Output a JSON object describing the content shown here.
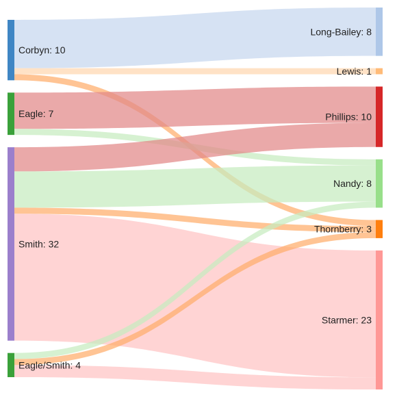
{
  "chart_data": {
    "type": "sankey",
    "sources": [
      {
        "id": "corbyn",
        "label": "Corbyn: 10",
        "value": 10,
        "color": "#3f86c4"
      },
      {
        "id": "eagle",
        "label": "Eagle: 7",
        "value": 7,
        "color": "#3aa13a"
      },
      {
        "id": "smith",
        "label": "Smith: 32",
        "value": 32,
        "color": "#9b7fcc"
      },
      {
        "id": "eaglesmith",
        "label": "Eagle/Smith: 4",
        "value": 4,
        "color": "#3aa13a"
      }
    ],
    "targets": [
      {
        "id": "longbailey",
        "label": "Long-Bailey: 8",
        "value": 8,
        "color": "#aec7e8"
      },
      {
        "id": "lewis",
        "label": "Lewis: 1",
        "value": 1,
        "color": "#ffbb78"
      },
      {
        "id": "phillips",
        "label": "Phillips: 10",
        "value": 10,
        "color": "#d62728"
      },
      {
        "id": "nandy",
        "label": "Nandy: 8",
        "value": 8,
        "color": "#98df8a"
      },
      {
        "id": "thornberry",
        "label": "Thornberry: 3",
        "value": 3,
        "color": "#ff7f0e"
      },
      {
        "id": "starmer",
        "label": "Starmer: 23",
        "value": 23,
        "color": "#ff9896"
      }
    ],
    "links": [
      {
        "source": "corbyn",
        "target": "longbailey",
        "value": 8,
        "color": "#c6d7ee"
      },
      {
        "source": "corbyn",
        "target": "lewis",
        "value": 1,
        "color": "#ffd7b0"
      },
      {
        "source": "corbyn",
        "target": "thornberry",
        "value": 1,
        "color": "#ffad6b"
      },
      {
        "source": "eagle",
        "target": "phillips",
        "value": 6,
        "color": "#e28888"
      },
      {
        "source": "eagle",
        "target": "nandy",
        "value": 1,
        "color": "#c6ecbf"
      },
      {
        "source": "smith",
        "target": "phillips",
        "value": 4,
        "color": "#e28888"
      },
      {
        "source": "smith",
        "target": "nandy",
        "value": 6,
        "color": "#c6ecbf"
      },
      {
        "source": "smith",
        "target": "thornberry",
        "value": 1,
        "color": "#ffad6b"
      },
      {
        "source": "smith",
        "target": "starmer",
        "value": 21,
        "color": "#ffc4c4"
      },
      {
        "source": "eaglesmith",
        "target": "nandy",
        "value": 1,
        "color": "#c6ecbf"
      },
      {
        "source": "eaglesmith",
        "target": "thornberry",
        "value": 1,
        "color": "#ffad6b"
      },
      {
        "source": "eaglesmith",
        "target": "starmer",
        "value": 2,
        "color": "#ffc4c4"
      }
    ]
  }
}
